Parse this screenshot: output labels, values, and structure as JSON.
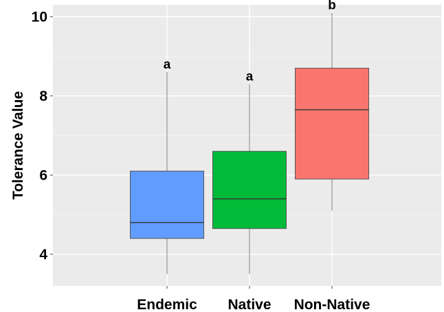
{
  "chart_data": {
    "type": "box",
    "title": "",
    "xlabel": "",
    "ylabel": "Tolerance Value",
    "ylim": [
      3.2,
      10.3
    ],
    "yticks": [
      4,
      6,
      8,
      10
    ],
    "grid": true,
    "legend": "none",
    "panel_background": "#ebebeb",
    "grid_color": "#ffffff",
    "categories": [
      "Endemic",
      "Native",
      "Non-Native"
    ],
    "boxes": [
      {
        "category": "Endemic",
        "whisker_low": 3.5,
        "q1": 4.4,
        "median": 4.8,
        "q3": 6.1,
        "whisker_high": 8.6,
        "color": "#619cff",
        "significance": "a"
      },
      {
        "category": "Native",
        "whisker_low": 3.5,
        "q1": 4.65,
        "median": 5.4,
        "q3": 6.6,
        "whisker_high": 8.3,
        "color": "#00ba38",
        "significance": "a"
      },
      {
        "category": "Non-Native",
        "whisker_low": 5.1,
        "q1": 5.9,
        "median": 7.65,
        "q3": 8.7,
        "whisker_high": 10.1,
        "color": "#f8766d",
        "significance": "b"
      }
    ]
  }
}
